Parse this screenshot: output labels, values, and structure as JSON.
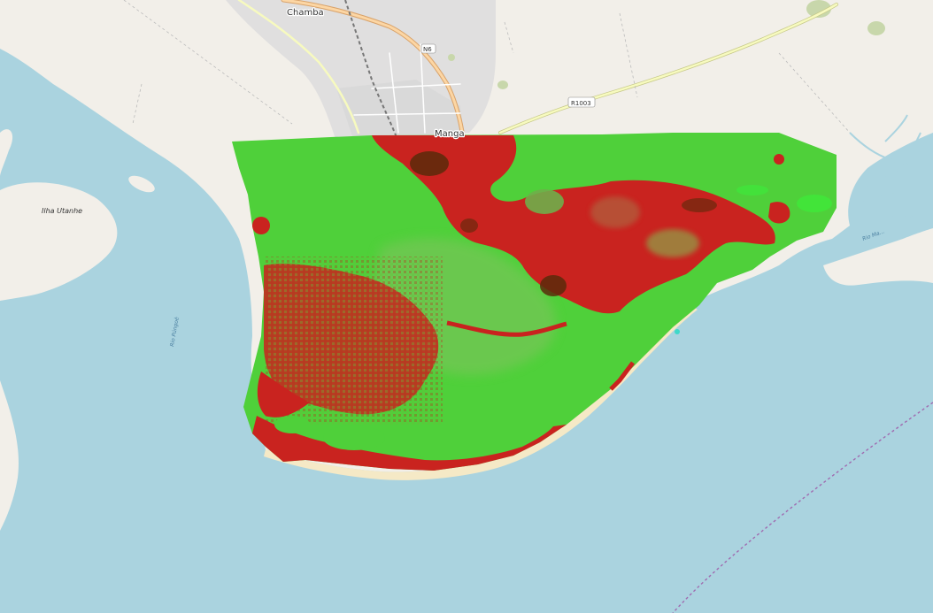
{
  "map": {
    "place_labels": {
      "chamba": "Chamba",
      "manga": "Manga"
    },
    "island_label": "Ilha Utanhe",
    "river_label_left": "Rio Púngoè",
    "river_label_right": "Rio Ma...",
    "road_shields": {
      "n6": "N6",
      "r1003": "R1003"
    },
    "colors": {
      "water": "#aad3df",
      "land": "#f2efe9",
      "sand": "#f5e9c6",
      "urban": "#e0dfdf",
      "road_primary": "#fcd6a4",
      "road_secondary": "#f7fabf",
      "railway": "#777777",
      "overlay_green": "#4fd03a",
      "overlay_red": "#c9231f",
      "overlay_dark": "#5a2a0a",
      "maritime_boundary": "#a06bb0"
    }
  }
}
